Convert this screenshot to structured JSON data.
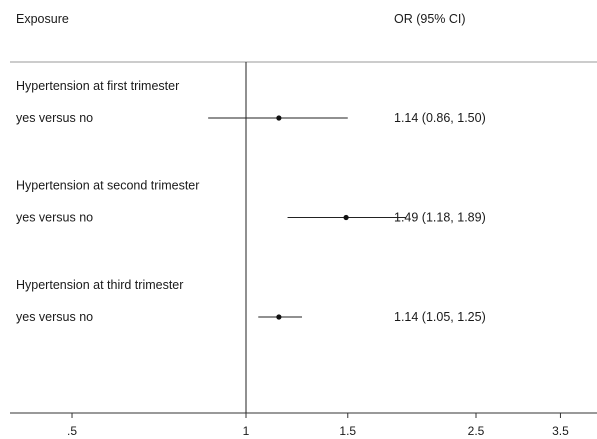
{
  "chart_data": {
    "type": "forest",
    "headers": {
      "left": "Exposure",
      "right": "OR (95% CI)"
    },
    "x_scale": "log",
    "x_ticks": [
      {
        "value": 0.5,
        "label": ".5"
      },
      {
        "value": 1,
        "label": "1"
      },
      {
        "value": 1.5,
        "label": "1.5"
      },
      {
        "value": 2.5,
        "label": "2.5"
      },
      {
        "value": 3.5,
        "label": "3.5"
      }
    ],
    "reference_value": 1,
    "groups": [
      {
        "title": "Hypertension at first trimester",
        "comparison": "yes versus no",
        "or": 1.14,
        "lower": 0.86,
        "upper": 1.5,
        "text": "1.14 (0.86, 1.50)"
      },
      {
        "title": "Hypertension at second trimester",
        "comparison": "yes versus no",
        "or": 1.49,
        "lower": 1.18,
        "upper": 1.89,
        "text": "1.49 (1.18, 1.89)"
      },
      {
        "title": "Hypertension at third trimester",
        "comparison": "yes versus no",
        "or": 1.14,
        "lower": 1.05,
        "upper": 1.25,
        "text": "1.14 (1.05, 1.25)"
      }
    ]
  }
}
